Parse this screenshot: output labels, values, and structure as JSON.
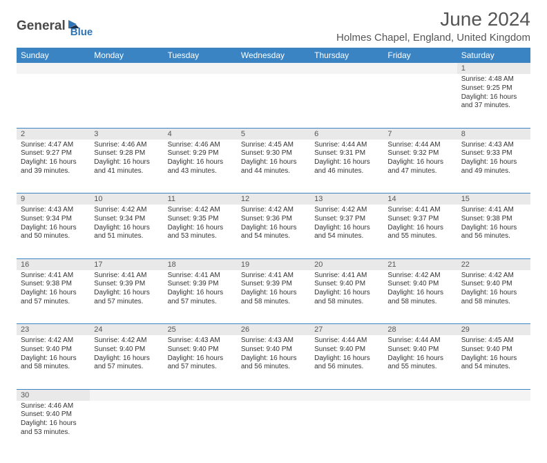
{
  "logo": {
    "part1": "General",
    "part2": "Blue"
  },
  "title": "June 2024",
  "location": "Holmes Chapel, England, United Kingdom",
  "colors": {
    "header_bg": "#3b84c4",
    "header_fg": "#ffffff",
    "daynum_bg": "#e9e9e9",
    "daynum_empty_bg": "#f4f4f4",
    "border": "#3b84c4",
    "logo_gray": "#4a4a4a",
    "logo_blue": "#2f74b5",
    "text": "#333333"
  },
  "day_headers": [
    "Sunday",
    "Monday",
    "Tuesday",
    "Wednesday",
    "Thursday",
    "Friday",
    "Saturday"
  ],
  "weeks": [
    [
      null,
      null,
      null,
      null,
      null,
      null,
      {
        "n": "1",
        "sr": "4:48 AM",
        "ss": "9:25 PM",
        "dh": "16",
        "dm": "37"
      }
    ],
    [
      {
        "n": "2",
        "sr": "4:47 AM",
        "ss": "9:27 PM",
        "dh": "16",
        "dm": "39"
      },
      {
        "n": "3",
        "sr": "4:46 AM",
        "ss": "9:28 PM",
        "dh": "16",
        "dm": "41"
      },
      {
        "n": "4",
        "sr": "4:46 AM",
        "ss": "9:29 PM",
        "dh": "16",
        "dm": "43"
      },
      {
        "n": "5",
        "sr": "4:45 AM",
        "ss": "9:30 PM",
        "dh": "16",
        "dm": "44"
      },
      {
        "n": "6",
        "sr": "4:44 AM",
        "ss": "9:31 PM",
        "dh": "16",
        "dm": "46"
      },
      {
        "n": "7",
        "sr": "4:44 AM",
        "ss": "9:32 PM",
        "dh": "16",
        "dm": "47"
      },
      {
        "n": "8",
        "sr": "4:43 AM",
        "ss": "9:33 PM",
        "dh": "16",
        "dm": "49"
      }
    ],
    [
      {
        "n": "9",
        "sr": "4:43 AM",
        "ss": "9:34 PM",
        "dh": "16",
        "dm": "50"
      },
      {
        "n": "10",
        "sr": "4:42 AM",
        "ss": "9:34 PM",
        "dh": "16",
        "dm": "51"
      },
      {
        "n": "11",
        "sr": "4:42 AM",
        "ss": "9:35 PM",
        "dh": "16",
        "dm": "53"
      },
      {
        "n": "12",
        "sr": "4:42 AM",
        "ss": "9:36 PM",
        "dh": "16",
        "dm": "54"
      },
      {
        "n": "13",
        "sr": "4:42 AM",
        "ss": "9:37 PM",
        "dh": "16",
        "dm": "54"
      },
      {
        "n": "14",
        "sr": "4:41 AM",
        "ss": "9:37 PM",
        "dh": "16",
        "dm": "55"
      },
      {
        "n": "15",
        "sr": "4:41 AM",
        "ss": "9:38 PM",
        "dh": "16",
        "dm": "56"
      }
    ],
    [
      {
        "n": "16",
        "sr": "4:41 AM",
        "ss": "9:38 PM",
        "dh": "16",
        "dm": "57"
      },
      {
        "n": "17",
        "sr": "4:41 AM",
        "ss": "9:39 PM",
        "dh": "16",
        "dm": "57"
      },
      {
        "n": "18",
        "sr": "4:41 AM",
        "ss": "9:39 PM",
        "dh": "16",
        "dm": "57"
      },
      {
        "n": "19",
        "sr": "4:41 AM",
        "ss": "9:39 PM",
        "dh": "16",
        "dm": "58"
      },
      {
        "n": "20",
        "sr": "4:41 AM",
        "ss": "9:40 PM",
        "dh": "16",
        "dm": "58"
      },
      {
        "n": "21",
        "sr": "4:42 AM",
        "ss": "9:40 PM",
        "dh": "16",
        "dm": "58"
      },
      {
        "n": "22",
        "sr": "4:42 AM",
        "ss": "9:40 PM",
        "dh": "16",
        "dm": "58"
      }
    ],
    [
      {
        "n": "23",
        "sr": "4:42 AM",
        "ss": "9:40 PM",
        "dh": "16",
        "dm": "58"
      },
      {
        "n": "24",
        "sr": "4:42 AM",
        "ss": "9:40 PM",
        "dh": "16",
        "dm": "57"
      },
      {
        "n": "25",
        "sr": "4:43 AM",
        "ss": "9:40 PM",
        "dh": "16",
        "dm": "57"
      },
      {
        "n": "26",
        "sr": "4:43 AM",
        "ss": "9:40 PM",
        "dh": "16",
        "dm": "56"
      },
      {
        "n": "27",
        "sr": "4:44 AM",
        "ss": "9:40 PM",
        "dh": "16",
        "dm": "56"
      },
      {
        "n": "28",
        "sr": "4:44 AM",
        "ss": "9:40 PM",
        "dh": "16",
        "dm": "55"
      },
      {
        "n": "29",
        "sr": "4:45 AM",
        "ss": "9:40 PM",
        "dh": "16",
        "dm": "54"
      }
    ],
    [
      {
        "n": "30",
        "sr": "4:46 AM",
        "ss": "9:40 PM",
        "dh": "16",
        "dm": "53"
      },
      null,
      null,
      null,
      null,
      null,
      null
    ]
  ],
  "labels": {
    "sunrise": "Sunrise:",
    "sunset": "Sunset:",
    "daylight": "Daylight:",
    "hours": "hours",
    "and": "and",
    "minutes": "minutes."
  }
}
